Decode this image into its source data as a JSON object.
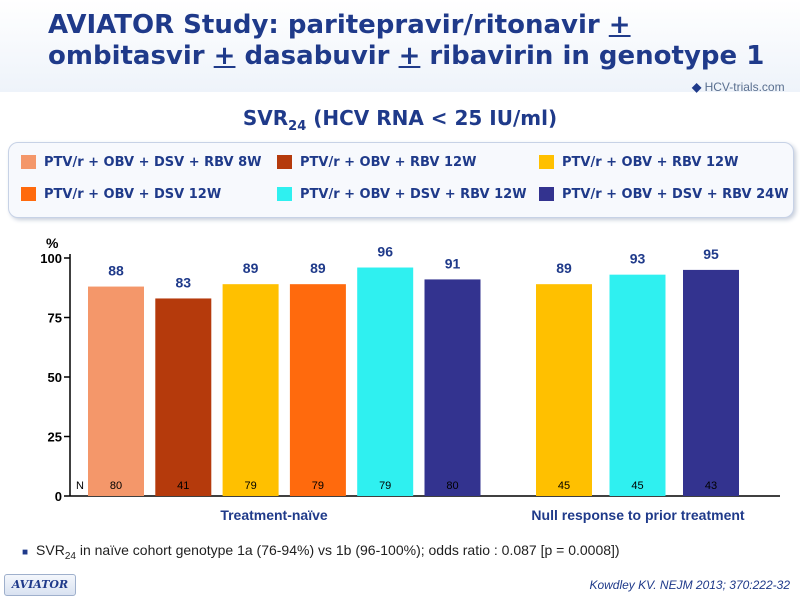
{
  "title": {
    "part1": "AVIATOR Study: paritepravir/ritonavir ",
    "plus1": "+",
    "part2": "ombitasvir ",
    "plus2": "+",
    "part3": " dasabuvir ",
    "plus3": "+",
    "part4": " ribavirin in genotype 1"
  },
  "logo": {
    "text": "HCV-trials.com"
  },
  "subtitle": {
    "main": "SVR",
    "sub": "24",
    "rest": " (HCV RNA < 25 IU/ml)"
  },
  "legend": [
    {
      "label": "PTV/r + OBV + DSV + RBV 8W",
      "color": "#f4976a"
    },
    {
      "label": "PTV/r + OBV + RBV 12W",
      "color": "#b53a0c"
    },
    {
      "label": "PTV/r + OBV + RBV 12W",
      "color": "#ffc000"
    },
    {
      "label": "PTV/r + OBV + DSV 12W",
      "color": "#ff6a0d"
    },
    {
      "label": "PTV/r + OBV + DSV + RBV 12W",
      "color": "#2ff0f0"
    },
    {
      "label": "PTV/r + OBV + DSV + RBV 24W",
      "color": "#33338f"
    }
  ],
  "chart_data": {
    "type": "bar",
    "ylabel": "%",
    "ylim": [
      0,
      100
    ],
    "yticks": [
      "0",
      "25",
      "50",
      "75",
      "100"
    ],
    "n_label": "N",
    "groups": [
      {
        "label": "Treatment-naïve",
        "bars": [
          {
            "value": 88,
            "n": "80",
            "color": "#f4976a"
          },
          {
            "value": 83,
            "n": "41",
            "color": "#b53a0c"
          },
          {
            "value": 89,
            "n": "79",
            "color": "#ffc000"
          },
          {
            "value": 89,
            "n": "79",
            "color": "#ff6a0d"
          },
          {
            "value": 96,
            "n": "79",
            "color": "#2ff0f0"
          },
          {
            "value": 91,
            "n": "80",
            "color": "#33338f"
          }
        ]
      },
      {
        "label": "Null response to prior treatment",
        "bars": [
          {
            "value": 89,
            "n": "45",
            "color": "#ffc000"
          },
          {
            "value": 93,
            "n": "45",
            "color": "#2ff0f0"
          },
          {
            "value": 95,
            "n": "43",
            "color": "#33338f"
          }
        ]
      }
    ]
  },
  "footnote": {
    "main": "SVR",
    "sub": "24",
    "rest": " in naïve cohort genotype 1a (76-94%) vs 1b (96-100%); odds ratio : 0.087 [p = 0.0008])"
  },
  "brand": {
    "text": "AVIATOR"
  },
  "citation": {
    "text": "Kowdley KV. NEJM 2013; 370:222-32"
  }
}
